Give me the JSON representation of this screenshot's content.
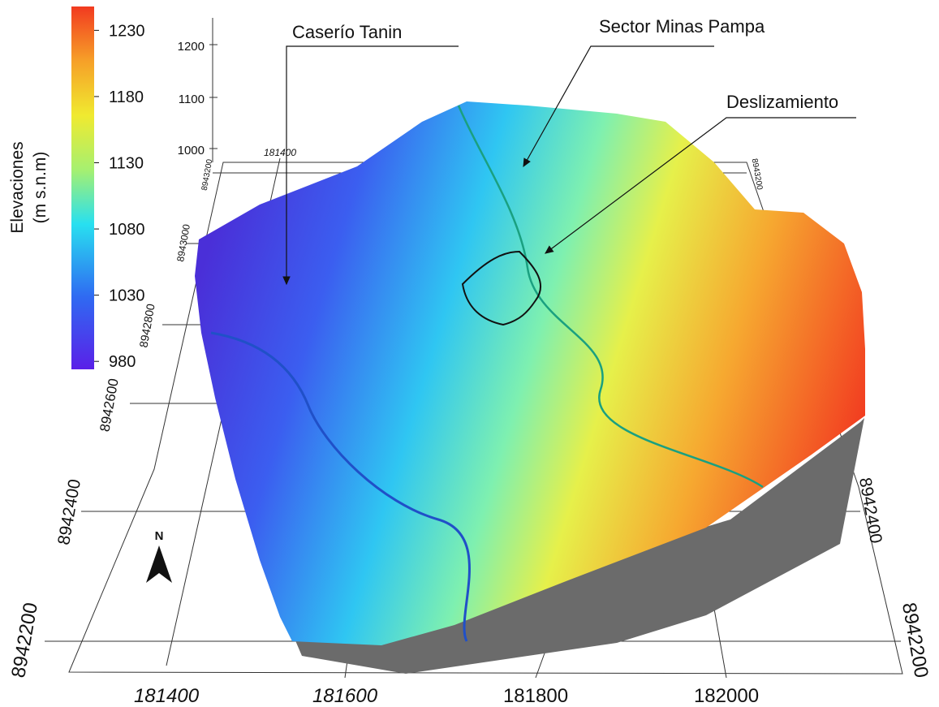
{
  "legend": {
    "title": [
      "Elevaciones",
      "(m s.n.m)"
    ],
    "ticks": [
      1230,
      1180,
      1130,
      1080,
      1030,
      980
    ],
    "lim": [
      974,
      1248
    ]
  },
  "annotations": [
    "Caserío Tanin",
    "Sector Minas Pampa",
    "Deslizamiento"
  ],
  "north": "N",
  "axes": {
    "x_bottom": [
      181400,
      181600,
      181800,
      182000
    ],
    "x_top": [
      181400
    ],
    "y_left": [
      8942200,
      8942400,
      8942600,
      8942800,
      8943000,
      8943200
    ],
    "y_right": [
      8942200,
      8942400,
      8943200
    ],
    "z": [
      1200,
      1100,
      1000
    ]
  }
}
